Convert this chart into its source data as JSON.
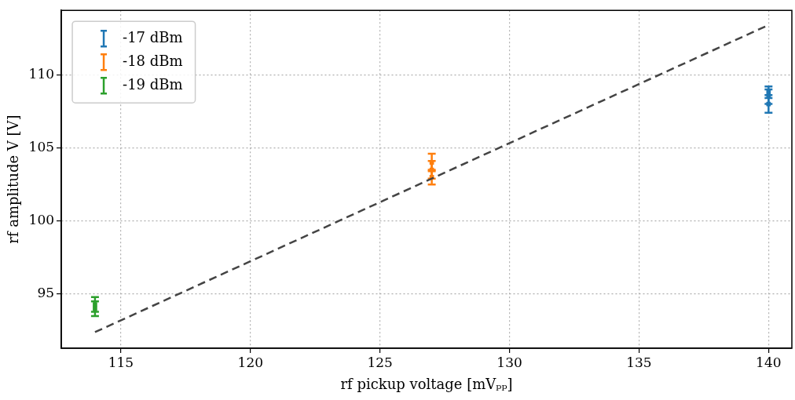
{
  "chart_data": {
    "type": "scatter",
    "xlabel": "rf pickup voltage [mVₚₚ]",
    "ylabel": "rf amplitude V [V]",
    "xlim": [
      112.7,
      140.9
    ],
    "xticks": [
      115,
      120,
      125,
      130,
      135,
      140
    ],
    "ylim": [
      91.3,
      114.4
    ],
    "yticks": [
      95,
      100,
      105,
      110
    ],
    "grid": true,
    "legend": "top left",
    "marker": "square",
    "series": [
      {
        "name": "-17 dBm",
        "color": "#1f77b4",
        "x": [
          140,
          140,
          140
        ],
        "values": [
          108.0,
          108.5,
          108.8
        ],
        "errors": [
          0.6,
          0.5,
          0.4
        ]
      },
      {
        "name": "-18 dBm",
        "color": "#ff7f0e",
        "x": [
          127,
          127,
          127
        ],
        "values": [
          103.0,
          103.5,
          104.0
        ],
        "errors": [
          0.5,
          0.6,
          0.6
        ]
      },
      {
        "name": "-19 dBm",
        "color": "#2ca02c",
        "x": [
          114,
          114
        ],
        "values": [
          94.0,
          94.3
        ],
        "errors": [
          0.5,
          0.5
        ]
      },
      {
        "type": "line",
        "color": "#444444",
        "line_style": "dashed",
        "marker": "none",
        "x": [
          114,
          140
        ],
        "values": [
          92.4,
          113.4
        ]
      }
    ]
  }
}
